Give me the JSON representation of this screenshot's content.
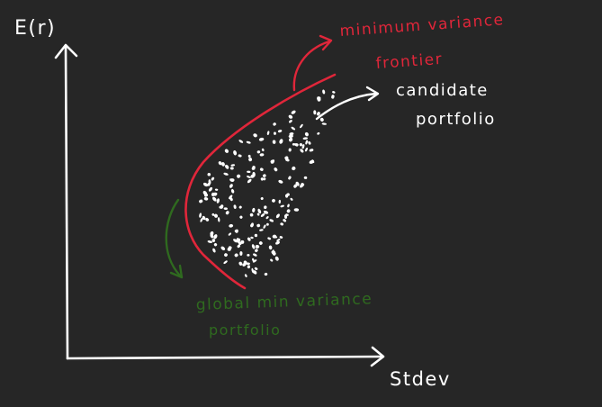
{
  "labels": {
    "y_axis": "E(r)",
    "x_axis": "Stdev",
    "frontier": [
      "minimum variance",
      "frontier"
    ],
    "candidate": [
      "candidate",
      "portfolio"
    ],
    "gmv": [
      "global min variance",
      "portfolio"
    ]
  },
  "colors": {
    "background": "#262626",
    "axes": "#ffffff",
    "frontier": "#e0263a",
    "candidate": "#ffffff",
    "gmv": "#2f6a1f"
  }
}
